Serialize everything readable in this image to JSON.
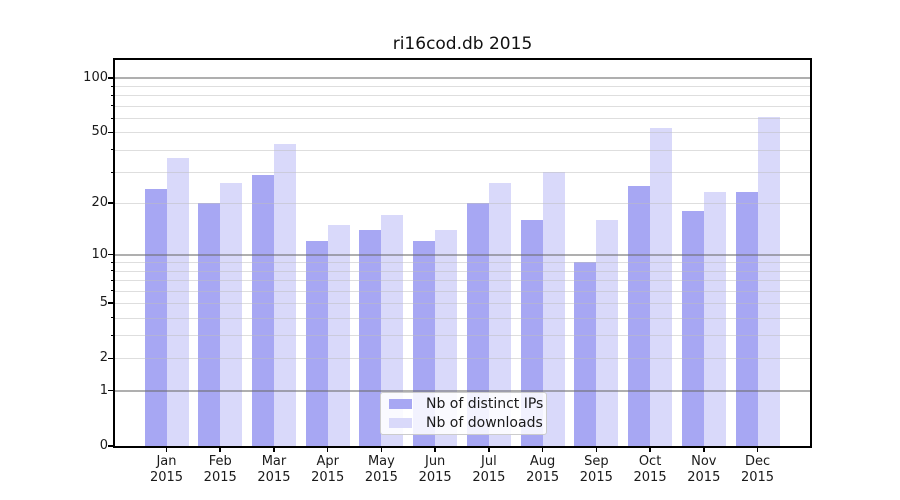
{
  "title": "ri16cod.db 2015",
  "chart_data": {
    "type": "bar",
    "title": "ri16cod.db 2015",
    "categories": [
      "Jan",
      "Feb",
      "Mar",
      "Apr",
      "May",
      "Jun",
      "Jul",
      "Aug",
      "Sep",
      "Oct",
      "Nov",
      "Dec"
    ],
    "year_label": "2015",
    "series": [
      {
        "name": "Nb of distinct IPs",
        "color": "#a7a7f3",
        "values": [
          24,
          20,
          29,
          12,
          14,
          12,
          20,
          16,
          9,
          25,
          18,
          23
        ]
      },
      {
        "name": "Nb of downloads",
        "color": "#d9d9fa",
        "values": [
          36,
          26,
          43,
          15,
          17,
          14,
          26,
          30,
          16,
          53,
          23,
          61
        ]
      }
    ],
    "xlabel": "",
    "ylabel": "",
    "y_axis": {
      "scale": "log1p",
      "range": [
        0,
        125
      ],
      "tick_labels": [
        "100",
        "50",
        "20",
        "10",
        "5",
        "2",
        "1",
        "0"
      ],
      "tick_values": [
        100,
        50,
        20,
        10,
        5,
        2,
        1,
        0
      ],
      "major_grid_values": [
        1,
        10,
        100
      ],
      "minor_grid_values": [
        2,
        3,
        4,
        5,
        6,
        7,
        8,
        9,
        20,
        30,
        40,
        50,
        60,
        70,
        80,
        90
      ]
    },
    "grid": true,
    "legend_position": "lower-center-inside"
  },
  "colors": {
    "background": "#ffffff",
    "spine": "#000000",
    "major_grid": "#b2b2b2",
    "minor_grid": "#e2e2e2",
    "text": "#1a1a1a"
  }
}
